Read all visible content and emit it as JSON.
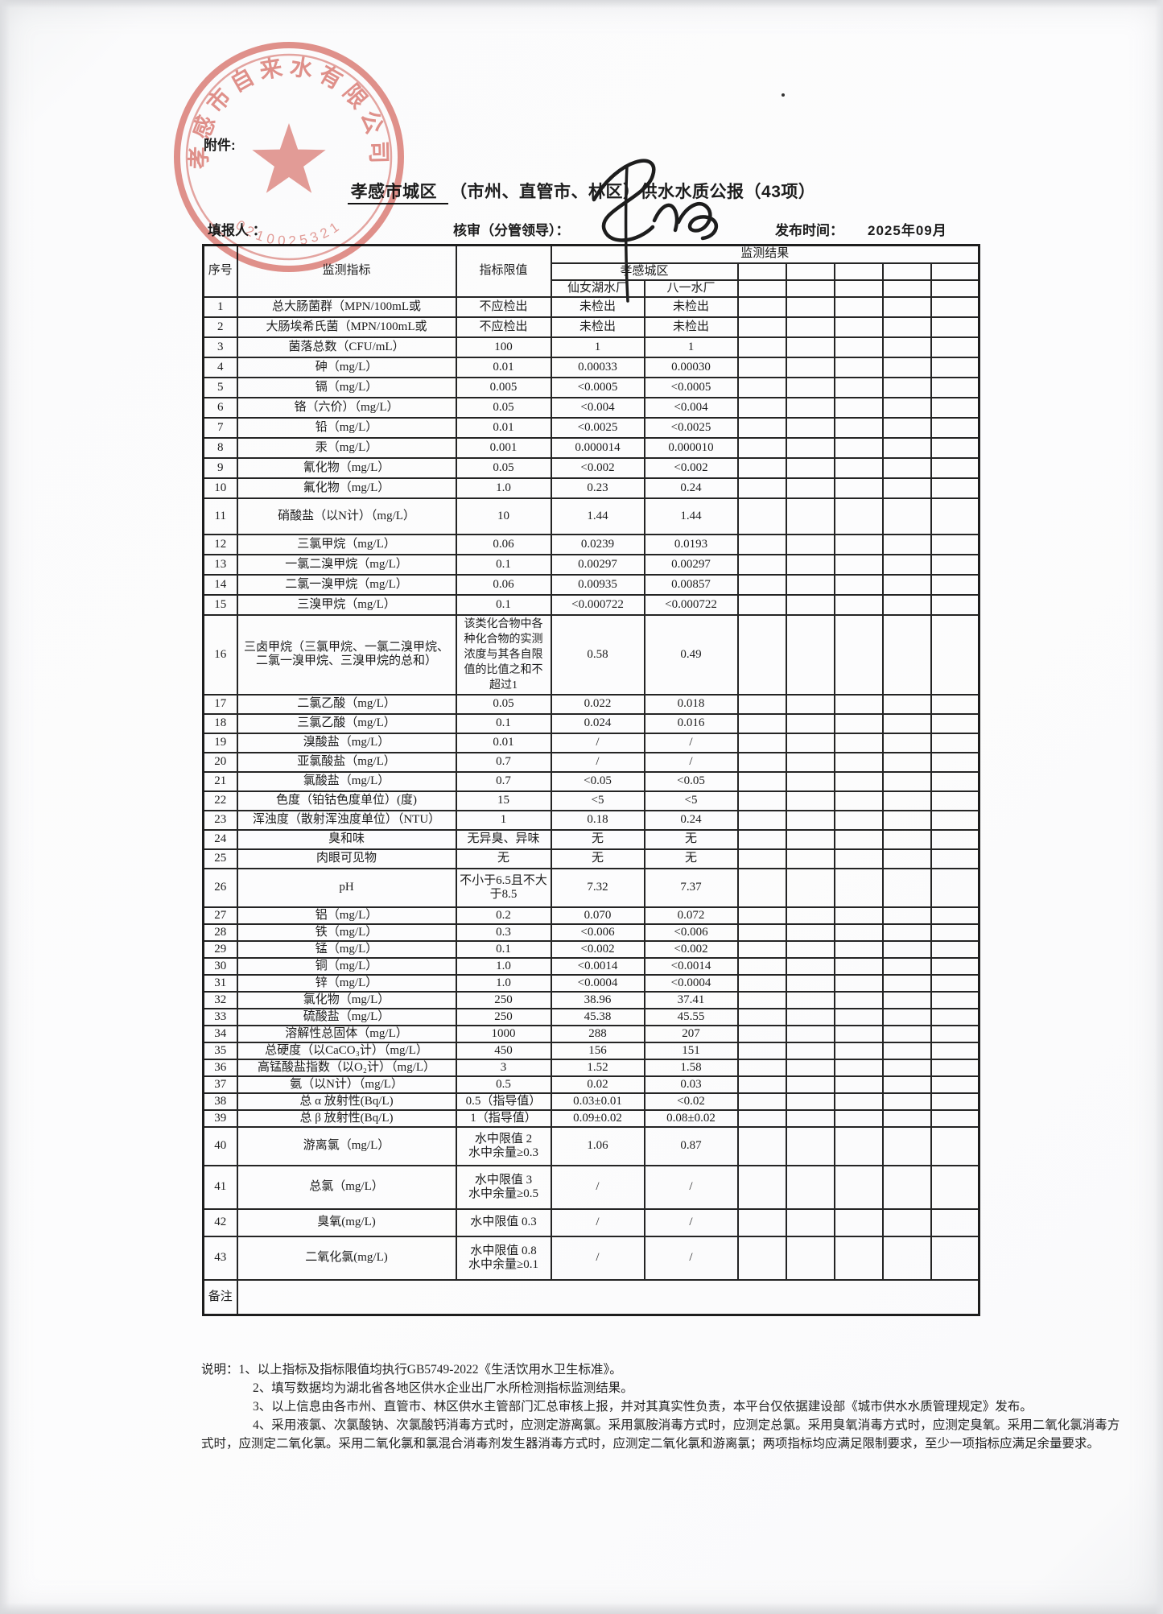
{
  "page": {
    "attachment_label": "附件:",
    "title_underlined": "孝感市城区",
    "title_rest": "（市州、直管市、林区）供水水质公报（43项）",
    "form": {
      "filler_label": "填报人 ：",
      "reviewer_label": "核审（分管领导）：",
      "publish_label": "发布时间：",
      "publish_value": "2025年09月"
    },
    "stamp": {
      "company": "孝感市自来水有限公司",
      "number": "0210025321",
      "color": "#d96b63"
    }
  },
  "table": {
    "headers": {
      "no": "序号",
      "indicator": "监测指标",
      "limit": "指标限值",
      "result": "监测结果",
      "city": "孝感城区",
      "plant1": "仙女湖水厂",
      "plant2": "八一水厂"
    },
    "empty_result_columns": 5,
    "remark_label": "备注",
    "rows": [
      {
        "no": "1",
        "name": "总大肠菌群（MPN/100mL或",
        "limit": "不应检出",
        "v1": "未检出",
        "v2": "未检出"
      },
      {
        "no": "2",
        "name": "大肠埃希氏菌（MPN/100mL或",
        "limit": "不应检出",
        "v1": "未检出",
        "v2": "未检出"
      },
      {
        "no": "3",
        "name": "菌落总数（CFU/mL）",
        "limit": "100",
        "v1": "1",
        "v2": "1"
      },
      {
        "no": "4",
        "name": "砷（mg/L）",
        "limit": "0.01",
        "v1": "0.00033",
        "v2": "0.00030"
      },
      {
        "no": "5",
        "name": "镉（mg/L）",
        "limit": "0.005",
        "v1": "<0.0005",
        "v2": "<0.0005"
      },
      {
        "no": "6",
        "name": "铬（六价）（mg/L）",
        "limit": "0.05",
        "v1": "<0.004",
        "v2": "<0.004"
      },
      {
        "no": "7",
        "name": "铅（mg/L）",
        "limit": "0.01",
        "v1": "<0.0025",
        "v2": "<0.0025"
      },
      {
        "no": "8",
        "name": "汞（mg/L）",
        "limit": "0.001",
        "v1": "0.000014",
        "v2": "0.000010"
      },
      {
        "no": "9",
        "name": "氰化物（mg/L）",
        "limit": "0.05",
        "v1": "<0.002",
        "v2": "<0.002"
      },
      {
        "no": "10",
        "name": "氟化物（mg/L）",
        "limit": "1.0",
        "v1": "0.23",
        "v2": "0.24"
      },
      {
        "no": "11",
        "name": "硝酸盐（以N计）（mg/L）",
        "limit": "10",
        "v1": "1.44",
        "v2": "1.44"
      },
      {
        "no": "12",
        "name": "三氯甲烷（mg/L）",
        "limit": "0.06",
        "v1": "0.0239",
        "v2": "0.0193"
      },
      {
        "no": "13",
        "name": "一氯二溴甲烷（mg/L）",
        "limit": "0.1",
        "v1": "0.00297",
        "v2": "0.00297"
      },
      {
        "no": "14",
        "name": "二氯一溴甲烷（mg/L）",
        "limit": "0.06",
        "v1": "0.00935",
        "v2": "0.00857"
      },
      {
        "no": "15",
        "name": "三溴甲烷（mg/L）",
        "limit": "0.1",
        "v1": "<0.000722",
        "v2": "<0.000722"
      },
      {
        "no": "16",
        "name": "三卤甲烷（三氯甲烷、一氯二溴甲烷、二氯一溴甲烷、三溴甲烷的总和）",
        "limit": "该类化合物中各种化合物的实测浓度与其各自限值的比值之和不超过1",
        "v1": "0.58",
        "v2": "0.49"
      },
      {
        "no": "17",
        "name": "二氯乙酸（mg/L）",
        "limit": "0.05",
        "v1": "0.022",
        "v2": "0.018"
      },
      {
        "no": "18",
        "name": "三氯乙酸（mg/L）",
        "limit": "0.1",
        "v1": "0.024",
        "v2": "0.016"
      },
      {
        "no": "19",
        "name": "溴酸盐（mg/L）",
        "limit": "0.01",
        "v1": "/",
        "v2": "/"
      },
      {
        "no": "20",
        "name": "亚氯酸盐（mg/L）",
        "limit": "0.7",
        "v1": "/",
        "v2": "/"
      },
      {
        "no": "21",
        "name": "氯酸盐（mg/L）",
        "limit": "0.7",
        "v1": "<0.05",
        "v2": "<0.05"
      },
      {
        "no": "22",
        "name": "色度（铂钴色度单位）(度)",
        "limit": "15",
        "v1": "<5",
        "v2": "<5"
      },
      {
        "no": "23",
        "name": "浑浊度（散射浑浊度单位）（NTU）",
        "limit": "1",
        "v1": "0.18",
        "v2": "0.24"
      },
      {
        "no": "24",
        "name": "臭和味",
        "limit": "无异臭、异味",
        "v1": "无",
        "v2": "无"
      },
      {
        "no": "25",
        "name": "肉眼可见物",
        "limit": "无",
        "v1": "无",
        "v2": "无"
      },
      {
        "no": "26",
        "name": "pH",
        "limit": "不小于6.5且不大于8.5",
        "v1": "7.32",
        "v2": "7.37"
      },
      {
        "no": "27",
        "name": "铝（mg/L）",
        "limit": "0.2",
        "v1": "0.070",
        "v2": "0.072"
      },
      {
        "no": "28",
        "name": "铁（mg/L）",
        "limit": "0.3",
        "v1": "<0.006",
        "v2": "<0.006"
      },
      {
        "no": "29",
        "name": "锰（mg/L）",
        "limit": "0.1",
        "v1": "<0.002",
        "v2": "<0.002"
      },
      {
        "no": "30",
        "name": "铜（mg/L）",
        "limit": "1.0",
        "v1": "<0.0014",
        "v2": "<0.0014"
      },
      {
        "no": "31",
        "name": "锌（mg/L）",
        "limit": "1.0",
        "v1": "<0.0004",
        "v2": "<0.0004"
      },
      {
        "no": "32",
        "name": "氯化物（mg/L）",
        "limit": "250",
        "v1": "38.96",
        "v2": "37.41"
      },
      {
        "no": "33",
        "name": "硫酸盐（mg/L）",
        "limit": "250",
        "v1": "45.38",
        "v2": "45.55"
      },
      {
        "no": "34",
        "name": "溶解性总固体（mg/L）",
        "limit": "1000",
        "v1": "288",
        "v2": "207"
      },
      {
        "no": "35",
        "name": "总硬度（以CaCO₃计）（mg/L）",
        "limit": "450",
        "v1": "156",
        "v2": "151"
      },
      {
        "no": "36",
        "name": "高锰酸盐指数（以O₂计）（mg/L）",
        "limit": "3",
        "v1": "1.52",
        "v2": "1.58"
      },
      {
        "no": "37",
        "name": "氨（以N计）（mg/L）",
        "limit": "0.5",
        "v1": "0.02",
        "v2": "0.03"
      },
      {
        "no": "38",
        "name": "总 α 放射性(Bq/L)",
        "limit": "0.5（指导值）",
        "v1": "0.03±0.01",
        "v2": "<0.02"
      },
      {
        "no": "39",
        "name": "总 β 放射性(Bq/L)",
        "limit": "1（指导值）",
        "v1": "0.09±0.02",
        "v2": "0.08±0.02"
      },
      {
        "no": "40",
        "name": "游离氯（mg/L）",
        "limit": "水中限值 2\n水中余量≥0.3",
        "v1": "1.06",
        "v2": "0.87"
      },
      {
        "no": "41",
        "name": "总氯（mg/L）",
        "limit": "水中限值 3\n水中余量≥0.5",
        "v1": "/",
        "v2": "/"
      },
      {
        "no": "42",
        "name": "臭氧(mg/L)",
        "limit": "水中限值 0.3",
        "v1": "/",
        "v2": "/"
      },
      {
        "no": "43",
        "name": "二氧化氯(mg/L)",
        "limit": "水中限值 0.8\n水中余量≥0.1",
        "v1": "/",
        "v2": "/"
      }
    ]
  },
  "notes": {
    "prefix": "说明：",
    "item1": "1、以上指标及指标限值均执行GB5749-2022《生活饮用水卫生标准》。",
    "item2": "2、填写数据均为湖北省各地区供水企业出厂水所检测指标监测结果。",
    "item3": "3、以上信息由各市州、直管市、林区供水主管部门汇总审核上报，并对其真实性负责，本平台仅依据建设部《城市供水水质管理规定》发布。",
    "item4": "4、采用液氯、次氯酸钠、次氯酸钙消毒方式时，应测定游离氯。采用氯胺消毒方式时，应测定总氯。采用臭氧消毒方式时，应测定臭氧。采用二氧化氯消毒方式时，应测定二氧化氯。采用二氧化氯和氯混合消毒剂发生器消毒方式时，应测定二氧化氯和游离氯；两项指标均应满足限制要求，至少一项指标应满足余量要求。"
  }
}
